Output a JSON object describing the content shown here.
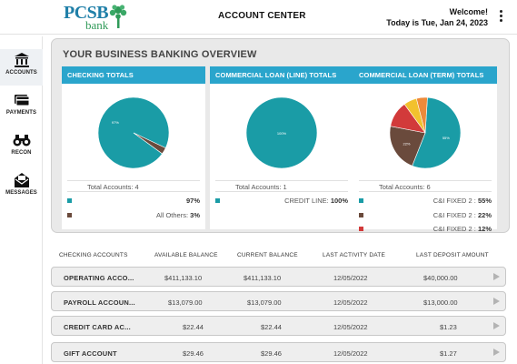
{
  "header": {
    "logo_text": "PCSB",
    "logo_sub": "bank",
    "title": "ACCOUNT CENTER",
    "welcome": "Welcome!",
    "date": "Today is Tue, Jan 24, 2023"
  },
  "sidebar": {
    "items": [
      {
        "label": "ACCOUNTS",
        "icon": "bank-icon"
      },
      {
        "label": "PAYMENTS",
        "icon": "card-icon"
      },
      {
        "label": "RECON",
        "icon": "binoculars-icon"
      },
      {
        "label": "MESSAGES",
        "icon": "envelope-icon"
      }
    ]
  },
  "overview": {
    "title": "YOUR BUSINESS BANKING OVERVIEW",
    "cards": [
      {
        "title": "CHECKING TOTALS",
        "total": "Total Accounts: 4",
        "legend": [
          {
            "label": "",
            "value": "97%",
            "color": "#1a9ca6"
          },
          {
            "label": "All Others:",
            "value": "3%",
            "color": "#6a4a3c"
          }
        ],
        "slice_labels": [
          "97%"
        ]
      },
      {
        "title": "COMMERCIAL LOAN (LINE) TOTALS",
        "total": "Total Accounts: 1",
        "legend": [
          {
            "label": "CREDIT LINE:",
            "value": "100%",
            "color": "#1a9ca6"
          }
        ],
        "slice_labels": [
          "100%"
        ]
      },
      {
        "title": "COMMERCIAL LOAN (TERM) TOTALS",
        "total": "Total Accounts: 6",
        "legend": [
          {
            "label": "C&I FIXED 2 :",
            "value": "55%",
            "color": "#1a9ca6"
          },
          {
            "label": "C&I FIXED 2 :",
            "value": "22%",
            "color": "#6a4a3c"
          },
          {
            "label": "C&I FIXED 2 :",
            "value": "12%",
            "color": "#d23a3a"
          }
        ],
        "slice_labels": [
          "55%",
          "22%"
        ]
      }
    ]
  },
  "chart_data": [
    {
      "type": "pie",
      "values": [
        97,
        3
      ],
      "colors": [
        "#1a9ca6",
        "#6a4a3c"
      ]
    },
    {
      "type": "pie",
      "values": [
        100
      ],
      "colors": [
        "#1a9ca6"
      ]
    },
    {
      "type": "pie",
      "values": [
        55,
        22,
        12,
        6,
        5
      ],
      "colors": [
        "#1a9ca6",
        "#6a4a3c",
        "#d23a3a",
        "#f2c12e",
        "#ee8a3a"
      ]
    }
  ],
  "table": {
    "headers": [
      "CHECKING ACCOUNTS",
      "AVAILABLE BALANCE",
      "CURRENT BALANCE",
      "LAST ACTIVITY DATE",
      "LAST DEPOSIT AMOUNT"
    ],
    "rows": [
      [
        "OPERATING ACCO...",
        "$411,133.10",
        "$411,133.10",
        "12/05/2022",
        "$40,000.00"
      ],
      [
        "PAYROLL ACCOUN...",
        "$13,079.00",
        "$13,079.00",
        "12/05/2022",
        "$13,000.00"
      ],
      [
        "CREDIT CARD AC...",
        "$22.44",
        "$22.44",
        "12/05/2022",
        "$1.23"
      ],
      [
        "GIFT ACCOUNT",
        "$29.46",
        "$29.46",
        "12/05/2022",
        "$1.27"
      ]
    ]
  }
}
